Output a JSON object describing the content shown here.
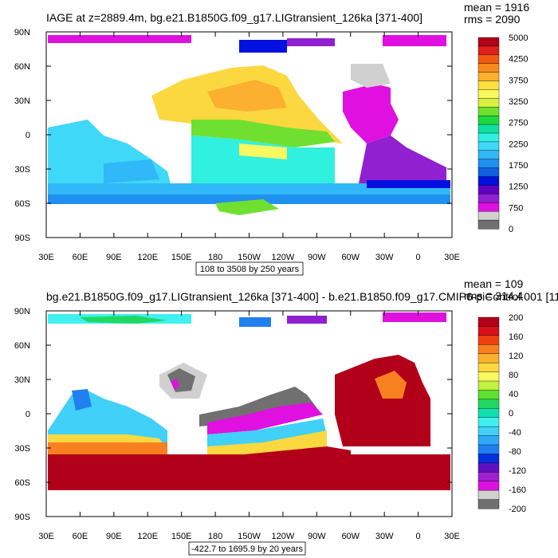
{
  "chart_data": [
    {
      "type": "heatmap",
      "title": "IAGE at z=2889.4m, bg.e21.B1850G.f09_g17.LIGtransient_126ka [371-400]",
      "stats": [
        "mean = 1916",
        "rms = 2090"
      ],
      "x_ticks": [
        "30E",
        "60E",
        "90E",
        "120E",
        "150E",
        "180",
        "150W",
        "120W",
        "90W",
        "60W",
        "30W",
        "0",
        "30E"
      ],
      "y_ticks": [
        "90N",
        "60N",
        "30N",
        "0",
        "30S",
        "60S",
        "90S"
      ],
      "range_label": "108 to 3508 by 250 years",
      "colorbar": {
        "labels": [
          "5000",
          "4250",
          "3750",
          "3250",
          "2750",
          "2250",
          "1750",
          "1250",
          "750",
          "0"
        ],
        "colors": [
          "#b2001a",
          "#e0201a",
          "#f05a10",
          "#f88a1e",
          "#fbb030",
          "#fce040",
          "#f8f860",
          "#d8f040",
          "#70e030",
          "#20d840",
          "#10e0a0",
          "#30f0e0",
          "#40d8f8",
          "#30b8f8",
          "#2090f0",
          "#1060e0",
          "#0010e0",
          "#6000c0",
          "#9020d0",
          "#e010e0",
          "#d0d0d0",
          "#707070"
        ]
      }
    },
    {
      "type": "heatmap",
      "title": "bg.e21.B1850G.f09_g17.LIGtransient_126ka [371-400] - b.e21.B1850.f09_g17.CMIP6-piControl.001 [11",
      "stats": [
        "mean = 109",
        "rms = 314.4"
      ],
      "x_ticks": [
        "30E",
        "60E",
        "90E",
        "120E",
        "150E",
        "180",
        "150W",
        "120W",
        "90W",
        "60W",
        "30W",
        "0",
        "30E"
      ],
      "y_ticks": [
        "90N",
        "60N",
        "30N",
        "0",
        "30S",
        "60S",
        "90S"
      ],
      "range_label": "-422.7 to 1695.9 by 20 years",
      "colorbar": {
        "labels": [
          "200",
          "160",
          "120",
          "80",
          "40",
          "0",
          "-40",
          "-80",
          "-120",
          "-160",
          "-200"
        ],
        "colors": [
          "#b2001a",
          "#d8101a",
          "#f04010",
          "#f88020",
          "#fbb030",
          "#fcd840",
          "#f8f860",
          "#c0f040",
          "#60e030",
          "#20d860",
          "#10e0b0",
          "#40f0f0",
          "#40d0f8",
          "#30a8f8",
          "#2080f0",
          "#0030e0",
          "#6010c0",
          "#a020d0",
          "#e010e0",
          "#d0d0d0",
          "#707070"
        ]
      }
    }
  ]
}
